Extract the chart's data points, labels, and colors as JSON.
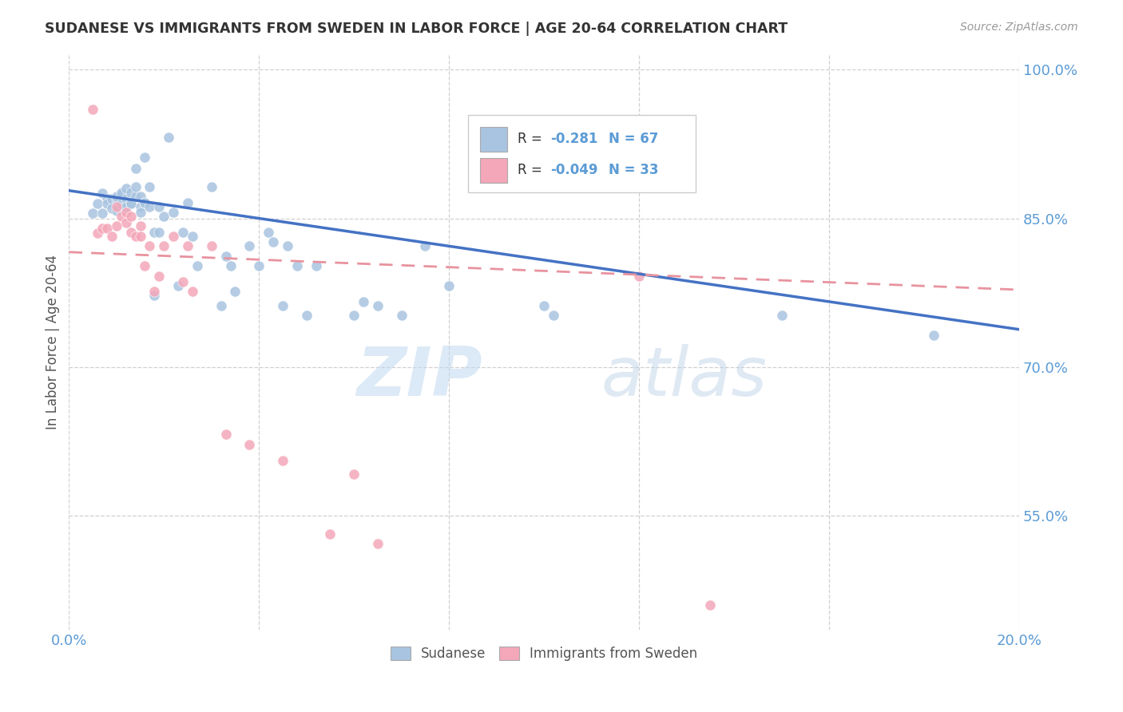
{
  "title": "SUDANESE VS IMMIGRANTS FROM SWEDEN IN LABOR FORCE | AGE 20-64 CORRELATION CHART",
  "source": "Source: ZipAtlas.com",
  "ylabel": "In Labor Force | Age 20-64",
  "xlim": [
    0.0,
    0.2
  ],
  "ylim": [
    0.435,
    1.015
  ],
  "xticks": [
    0.0,
    0.04,
    0.08,
    0.12,
    0.16,
    0.2
  ],
  "xtick_labels": [
    "0.0%",
    "",
    "",
    "",
    "",
    "20.0%"
  ],
  "yticks": [
    0.55,
    0.7,
    0.85,
    1.0
  ],
  "ytick_labels": [
    "55.0%",
    "70.0%",
    "85.0%",
    "100.0%"
  ],
  "watermark_zip": "ZIP",
  "watermark_atlas": "atlas",
  "blue_R": "-0.281",
  "blue_N": "67",
  "pink_R": "-0.049",
  "pink_N": "33",
  "blue_color": "#a8c4e0",
  "pink_color": "#f4a7b9",
  "trendline_blue_color": "#4472c4",
  "trendline_pink_color": "#e8939f",
  "axis_color": "#5b9bd5",
  "grid_color": "#d0d0d0",
  "blue_scatter_x": [
    0.005,
    0.006,
    0.007,
    0.007,
    0.008,
    0.008,
    0.009,
    0.009,
    0.01,
    0.01,
    0.01,
    0.011,
    0.011,
    0.011,
    0.012,
    0.012,
    0.012,
    0.013,
    0.013,
    0.013,
    0.014,
    0.014,
    0.014,
    0.015,
    0.015,
    0.015,
    0.016,
    0.016,
    0.016,
    0.017,
    0.017,
    0.018,
    0.018,
    0.019,
    0.019,
    0.02,
    0.021,
    0.022,
    0.023,
    0.024,
    0.025,
    0.026,
    0.027,
    0.03,
    0.032,
    0.033,
    0.034,
    0.035,
    0.038,
    0.04,
    0.042,
    0.043,
    0.045,
    0.046,
    0.048,
    0.05,
    0.052,
    0.06,
    0.062,
    0.065,
    0.07,
    0.075,
    0.08,
    0.1,
    0.102,
    0.15,
    0.182
  ],
  "blue_scatter_y": [
    0.855,
    0.865,
    0.875,
    0.855,
    0.87,
    0.865,
    0.87,
    0.86,
    0.858,
    0.87,
    0.872,
    0.876,
    0.875,
    0.865,
    0.87,
    0.88,
    0.862,
    0.876,
    0.866,
    0.865,
    0.9,
    0.872,
    0.882,
    0.862,
    0.872,
    0.856,
    0.866,
    0.866,
    0.912,
    0.862,
    0.882,
    0.772,
    0.836,
    0.862,
    0.836,
    0.852,
    0.932,
    0.856,
    0.782,
    0.836,
    0.866,
    0.832,
    0.802,
    0.882,
    0.762,
    0.812,
    0.802,
    0.776,
    0.822,
    0.802,
    0.836,
    0.826,
    0.762,
    0.822,
    0.802,
    0.752,
    0.802,
    0.752,
    0.766,
    0.762,
    0.752,
    0.822,
    0.782,
    0.762,
    0.752,
    0.752,
    0.732
  ],
  "pink_scatter_x": [
    0.005,
    0.006,
    0.007,
    0.008,
    0.009,
    0.01,
    0.01,
    0.011,
    0.012,
    0.012,
    0.013,
    0.013,
    0.014,
    0.015,
    0.015,
    0.016,
    0.017,
    0.018,
    0.019,
    0.02,
    0.022,
    0.024,
    0.025,
    0.026,
    0.03,
    0.033,
    0.038,
    0.045,
    0.055,
    0.06,
    0.065,
    0.12,
    0.135
  ],
  "pink_scatter_y": [
    0.96,
    0.835,
    0.84,
    0.84,
    0.832,
    0.862,
    0.842,
    0.852,
    0.856,
    0.846,
    0.836,
    0.852,
    0.832,
    0.842,
    0.832,
    0.802,
    0.822,
    0.776,
    0.792,
    0.822,
    0.832,
    0.786,
    0.822,
    0.776,
    0.822,
    0.632,
    0.622,
    0.606,
    0.532,
    0.592,
    0.522,
    0.792,
    0.46
  ],
  "blue_trend_x0": 0.0,
  "blue_trend_y0": 0.878,
  "blue_trend_x1": 0.2,
  "blue_trend_y1": 0.738,
  "pink_trend_x0": 0.0,
  "pink_trend_y0": 0.816,
  "pink_trend_x1": 0.2,
  "pink_trend_y1": 0.778
}
